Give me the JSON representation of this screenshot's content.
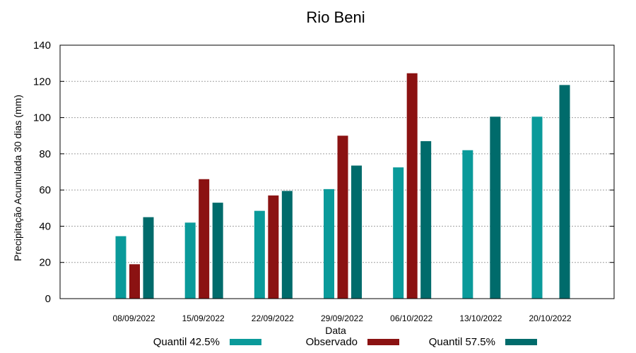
{
  "chart_data": {
    "type": "bar",
    "title": "Rio Beni",
    "xlabel": "Data",
    "ylabel": "Precipitação Acumulada 30 dias (mm)",
    "ylim": [
      0,
      140
    ],
    "yticks": [
      0,
      20,
      40,
      60,
      80,
      100,
      120,
      140
    ],
    "grid": true,
    "legend_position": "bottom",
    "categories": [
      "08/09/2022",
      "15/09/2022",
      "22/09/2022",
      "29/09/2022",
      "06/10/2022",
      "13/10/2022",
      "20/10/2022"
    ],
    "series": [
      {
        "name": "Quantil 42.5%",
        "color": "#0a9a9a",
        "values": [
          34.5,
          42,
          48.5,
          60.5,
          72.5,
          82,
          100.5
        ]
      },
      {
        "name": "Observado",
        "color": "#8b1212",
        "values": [
          19,
          66,
          57,
          90,
          124.5,
          null,
          null
        ]
      },
      {
        "name": "Quantil 57.5%",
        "color": "#006b6b",
        "values": [
          45,
          53,
          59.5,
          73.5,
          87,
          100.5,
          118
        ]
      }
    ]
  }
}
